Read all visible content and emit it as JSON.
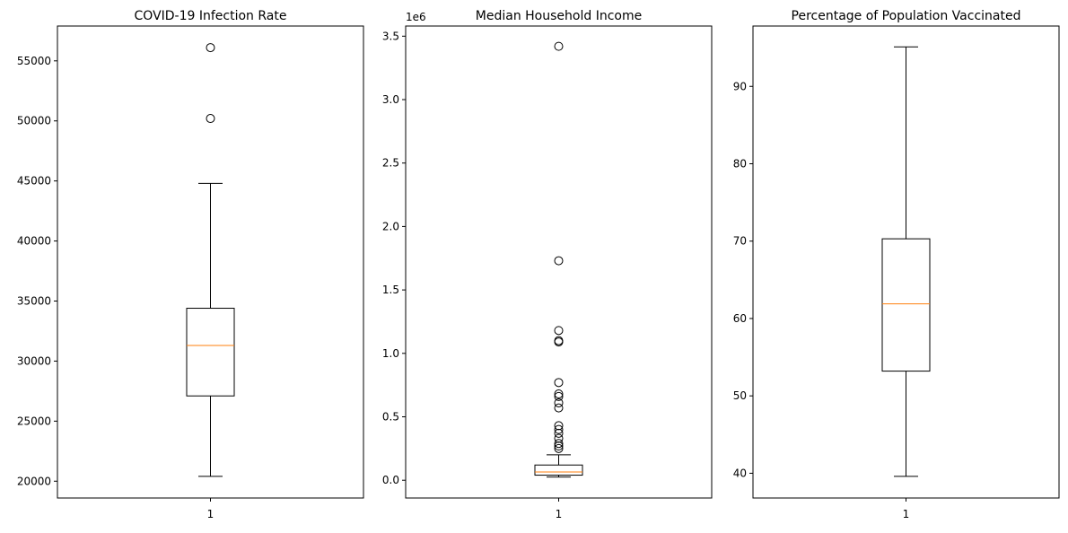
{
  "chart_data": [
    {
      "type": "box",
      "title": "COVID-19 Infection Rate",
      "categories": [
        "1"
      ],
      "ylim": [
        18600,
        57900
      ],
      "yticks": [
        20000,
        25000,
        30000,
        35000,
        40000,
        45000,
        50000,
        55000
      ],
      "ytick_labels": [
        "20000",
        "25000",
        "30000",
        "35000",
        "40000",
        "45000",
        "50000",
        "55000"
      ],
      "offset_label": "",
      "box": {
        "whisker_low": 20400,
        "q1": 27100,
        "median": 31300,
        "q3": 34400,
        "whisker_high": 44800
      },
      "outliers": [
        50200,
        56100
      ]
    },
    {
      "type": "box",
      "title": "Median Household Income",
      "categories": [
        "1"
      ],
      "ylim": [
        -0.14,
        3.58
      ],
      "yticks": [
        0.0,
        0.5,
        1.0,
        1.5,
        2.0,
        2.5,
        3.0,
        3.5
      ],
      "ytick_labels": [
        "0.0",
        "0.5",
        "1.0",
        "1.5",
        "2.0",
        "2.5",
        "3.0",
        "3.5"
      ],
      "offset_label": "1e6",
      "box": {
        "whisker_low": 0.025,
        "q1": 0.04,
        "median": 0.065,
        "q3": 0.12,
        "whisker_high": 0.2
      },
      "outliers": [
        0.25,
        0.27,
        0.29,
        0.33,
        0.37,
        0.4,
        0.43,
        0.57,
        0.61,
        0.66,
        0.68,
        0.77,
        1.09,
        1.1,
        1.18,
        1.73,
        3.42
      ]
    },
    {
      "type": "box",
      "title": "Percentage of Population Vaccinated",
      "categories": [
        "1"
      ],
      "ylim": [
        36.8,
        97.8
      ],
      "yticks": [
        40,
        50,
        60,
        70,
        80,
        90
      ],
      "ytick_labels": [
        "40",
        "50",
        "60",
        "70",
        "80",
        "90"
      ],
      "offset_label": "",
      "box": {
        "whisker_low": 39.6,
        "q1": 53.2,
        "median": 61.9,
        "q3": 70.3,
        "whisker_high": 95.1
      },
      "outliers": []
    }
  ],
  "colors": {
    "box": "#000000",
    "median": "#ff7f0e",
    "outlier": "#000000"
  }
}
